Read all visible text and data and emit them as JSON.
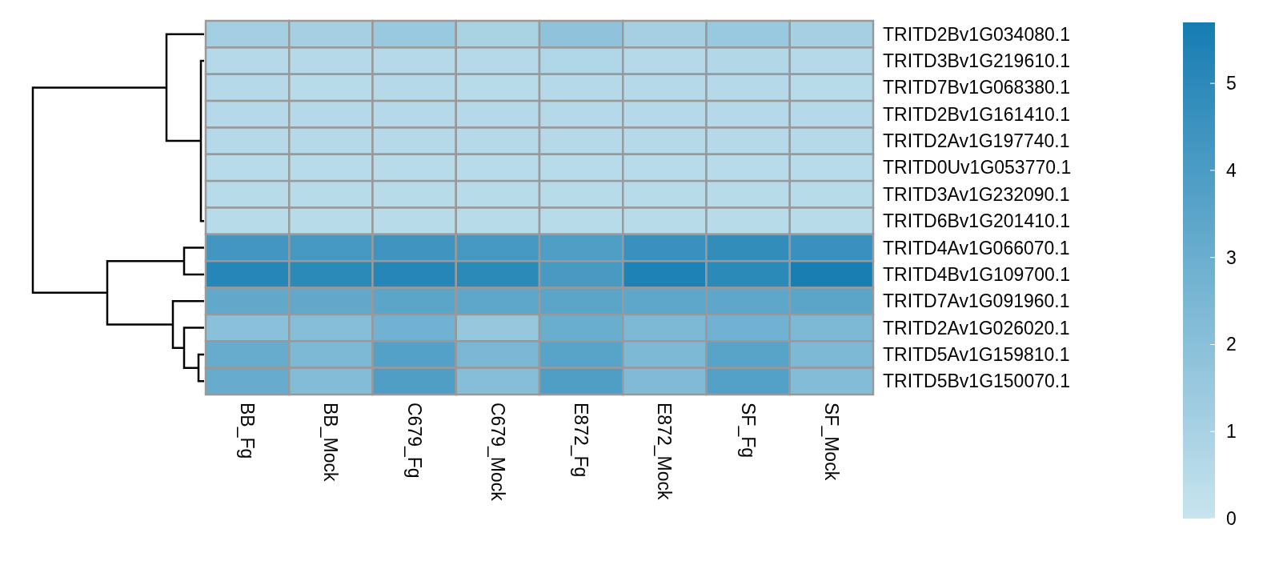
{
  "chart_data": {
    "type": "heatmap",
    "categories": [
      "BB_Fg",
      "BB_Mock",
      "C679_Fg",
      "C679_Mock",
      "E872_Fg",
      "E872_Mock",
      "SF_Fg",
      "SF_Mock"
    ],
    "y_categories": [
      "TRITD2Bv1G034080.1",
      "TRITD3Bv1G219610.1",
      "TRITD7Bv1G068380.1",
      "TRITD2Bv1G161410.1",
      "TRITD2Av1G197740.1",
      "TRITD0Uv1G053770.1",
      "TRITD3Av1G232090.1",
      "TRITD6Bv1G201410.1",
      "TRITD4Av1G066070.1",
      "TRITD4Bv1G109700.1",
      "TRITD7Av1G091960.1",
      "TRITD2Av1G026020.1",
      "TRITD5Av1G159810.1",
      "TRITD5Bv1G150070.1"
    ],
    "cells": [
      [
        1.2,
        1.1,
        1.5,
        1.0,
        1.8,
        1.1,
        1.5,
        1.1
      ],
      [
        0.6,
        0.6,
        0.6,
        0.6,
        0.8,
        0.6,
        0.7,
        0.6
      ],
      [
        0.6,
        0.5,
        0.6,
        0.5,
        0.6,
        0.6,
        0.6,
        0.5
      ],
      [
        0.6,
        0.6,
        0.6,
        0.6,
        0.6,
        0.6,
        0.6,
        0.6
      ],
      [
        0.6,
        0.6,
        0.6,
        0.6,
        0.6,
        0.6,
        0.6,
        0.6
      ],
      [
        0.5,
        0.5,
        0.5,
        0.5,
        0.5,
        0.5,
        0.5,
        0.5
      ],
      [
        0.5,
        0.5,
        0.5,
        0.5,
        0.5,
        0.5,
        0.5,
        0.5
      ],
      [
        0.5,
        0.5,
        0.5,
        0.5,
        0.5,
        0.5,
        0.5,
        0.5
      ],
      [
        4.3,
        4.2,
        4.4,
        4.2,
        3.9,
        4.6,
        4.8,
        4.6
      ],
      [
        5.2,
        5.0,
        5.2,
        5.0,
        4.1,
        5.4,
        5.0,
        5.6
      ],
      [
        3.3,
        3.3,
        3.5,
        3.4,
        3.5,
        3.4,
        3.4,
        3.5
      ],
      [
        2.0,
        2.1,
        2.8,
        1.6,
        3.0,
        2.4,
        2.8,
        2.4
      ],
      [
        3.1,
        2.4,
        3.7,
        2.5,
        3.6,
        2.4,
        3.6,
        2.4
      ],
      [
        3.1,
        2.2,
        3.9,
        2.1,
        3.9,
        2.3,
        3.7,
        2.2
      ]
    ],
    "clim": [
      0,
      5.7
    ],
    "cticks": [
      0,
      1,
      2,
      3,
      4,
      5
    ]
  }
}
